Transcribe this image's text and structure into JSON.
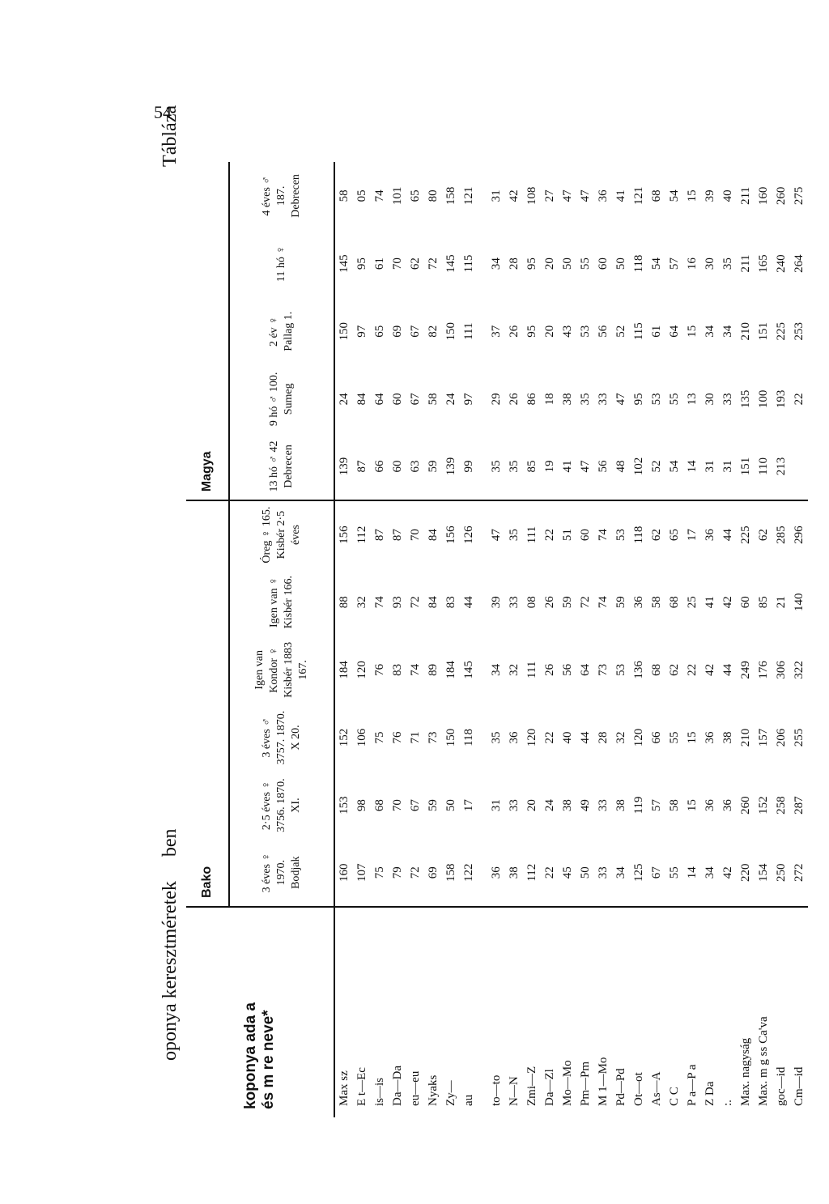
{
  "page_number": "54",
  "title": {
    "left": "oponya keresztméretek",
    "middle": "ben",
    "right": "Táblázа"
  },
  "table": {
    "header_line1": "koponya ada a",
    "header_line2": "és   m  re  neve*",
    "groups": [
      {
        "name": "Bako",
        "span": 6
      },
      {
        "name": "Magya",
        "span": 5
      }
    ],
    "columns": [
      "3 éves ♀ 1970. Bodjak",
      "2·5 éves ♀ 3756. 1870. XI.",
      "3 éves ♂ 3757. 1870. X 20.",
      "Igen van Kondor ♀ Kisbér 1883 167.",
      "Igen van ♀ Kisbér 166.",
      "Óreg ♀ 165. Kisbér 2·5 éves",
      "13 hó ♂ 42 Debrecen",
      "9 hó ♂ 100. Sumeg",
      "2 év ♀ Pallag 1.",
      "11 hó ♀",
      "4 éves ♂ 187. Debrecen"
    ],
    "rows": [
      {
        "label": "Max   sz",
        "values": [
          "160",
          "153",
          "152",
          "184",
          "88",
          "156",
          "139",
          "24",
          "150",
          "145",
          "58"
        ]
      },
      {
        "label": "E t—Ec",
        "values": [
          "107",
          "98",
          "106",
          "120",
          "32",
          "112",
          "87",
          "84",
          "97",
          "95",
          "05"
        ]
      },
      {
        "label": "is—is",
        "values": [
          "75",
          "68",
          "75",
          "76",
          "74",
          "87",
          "66",
          "64",
          "65",
          "61",
          "74"
        ]
      },
      {
        "label": "Da—Da",
        "values": [
          "79",
          "70",
          "76",
          "83",
          "93",
          "87",
          "60",
          "60",
          "69",
          "70",
          "101"
        ]
      },
      {
        "label": "eu—eu",
        "values": [
          "72",
          "67",
          "71",
          "74",
          "72",
          "70",
          "63",
          "67",
          "67",
          "62",
          "65"
        ]
      },
      {
        "label": "Nyaks",
        "values": [
          "69",
          "59",
          "73",
          "89",
          "84",
          "84",
          "59",
          "58",
          "82",
          "72",
          "80"
        ]
      },
      {
        "label": "Zy—",
        "values": [
          "158",
          "50",
          "150",
          "184",
          "83",
          "156",
          "139",
          "24",
          "150",
          "145",
          "158"
        ]
      },
      {
        "label": "au",
        "values": [
          "122",
          "17",
          "118",
          "145",
          "44",
          "126",
          "99",
          "97",
          "111",
          "115",
          "121"
        ]
      },
      {
        "label": "",
        "gap": true,
        "values": [
          "",
          "",
          "",
          "",
          "",
          "",
          "",
          "",
          "",
          "",
          ""
        ]
      },
      {
        "label": "to—to",
        "values": [
          "36",
          "31",
          "35",
          "34",
          "39",
          "47",
          "35",
          "29",
          "37",
          "34",
          "31"
        ]
      },
      {
        "label": "N—N",
        "values": [
          "38",
          "33",
          "36",
          "32",
          "33",
          "35",
          "35",
          "26",
          "26",
          "28",
          "42"
        ]
      },
      {
        "label": "Zmi—Z",
        "values": [
          "112",
          "20",
          "120",
          "111",
          "08",
          "111",
          "85",
          "86",
          "95",
          "95",
          "108"
        ]
      },
      {
        "label": "Da—Zl",
        "values": [
          "22",
          "24",
          "22",
          "26",
          "26",
          "22",
          "19",
          "18",
          "20",
          "20",
          "27"
        ]
      },
      {
        "label": "Mo—Mo",
        "values": [
          "45",
          "38",
          "40",
          "56",
          "59",
          "51",
          "41",
          "38",
          "43",
          "50",
          "47"
        ]
      },
      {
        "label": "Pm—Pm",
        "values": [
          "50",
          "49",
          "44",
          "64",
          "72",
          "60",
          "47",
          "35",
          "53",
          "55",
          "47"
        ]
      },
      {
        "label": "M 1—Mo",
        "values": [
          "33",
          "33",
          "28",
          "73",
          "74",
          "74",
          "56",
          "33",
          "56",
          "60",
          "36"
        ]
      },
      {
        "label": "Pd—Pd",
        "values": [
          "34",
          "38",
          "32",
          "53",
          "59",
          "53",
          "48",
          "47",
          "52",
          "50",
          "41"
        ]
      },
      {
        "label": "Ot—ot",
        "values": [
          "125",
          "119",
          "120",
          "136",
          "36",
          "118",
          "102",
          "95",
          "115",
          "118",
          "121"
        ]
      },
      {
        "label": "As—A",
        "values": [
          "67",
          "57",
          "66",
          "68",
          "58",
          "62",
          "52",
          "53",
          "61",
          "54",
          "68"
        ]
      },
      {
        "label": "C  C",
        "values": [
          "55",
          "58",
          "55",
          "62",
          "68",
          "65",
          "54",
          "55",
          "64",
          "57",
          "54"
        ]
      },
      {
        "label": "P  a—P  a",
        "values": [
          "14",
          "15",
          "15",
          "22",
          "25",
          "17",
          "14",
          "13",
          "15",
          "16",
          "15"
        ]
      },
      {
        "label": "Z    Da",
        "values": [
          "34",
          "36",
          "36",
          "42",
          "41",
          "36",
          "31",
          "30",
          "34",
          "30",
          "39"
        ]
      },
      {
        "label": ":.",
        "values": [
          "42",
          "36",
          "38",
          "44",
          "42",
          "44",
          "31",
          "33",
          "34",
          "35",
          "40"
        ]
      },
      {
        "label": "Max.  nagyság",
        "values": [
          "220",
          "260",
          "210",
          "249",
          "60",
          "225",
          "151",
          "135",
          "210",
          "211",
          "211"
        ]
      },
      {
        "label": "Max.  m g  ss  Ca'va",
        "values": [
          "154",
          "152",
          "157",
          "176",
          "85",
          "62",
          "110",
          "100",
          "151",
          "165",
          "160"
        ]
      },
      {
        "label": "goc—id",
        "values": [
          "250",
          "258",
          "206",
          "306",
          "21",
          "285",
          "213",
          "193",
          "225",
          "240",
          "260"
        ]
      },
      {
        "label": "Cm—id",
        "values": [
          "272",
          "287",
          "255",
          "322",
          "140",
          "296",
          "",
          "22",
          "253",
          "264",
          "275"
        ]
      }
    ]
  }
}
